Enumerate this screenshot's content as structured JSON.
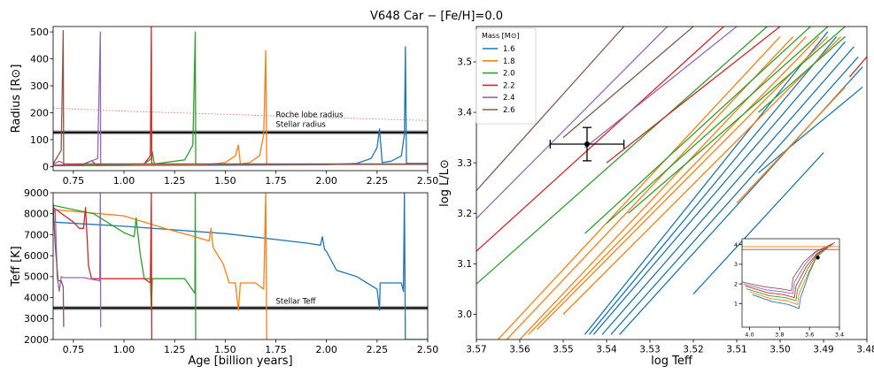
{
  "figure_title": "V648 Car − [Fe/H]=0.0",
  "chart_data": [
    {
      "id": "radius",
      "type": "line",
      "ylabel": "Radius [R⊙]",
      "xlim": [
        0.65,
        2.5
      ],
      "ylim": [
        -15,
        520
      ],
      "xticks": [
        0.75,
        1.0,
        1.25,
        1.5,
        1.75,
        2.0,
        2.25,
        2.5
      ],
      "xtick_labels": [
        "0.75",
        "1.00",
        "1.25",
        "1.50",
        "1.75",
        "2.00",
        "2.25",
        "2.50"
      ],
      "yticks": [
        0,
        100,
        200,
        300,
        400,
        500
      ],
      "ytick_labels": [
        "0",
        "100",
        "200",
        "300",
        "400",
        "500"
      ],
      "hlines": [
        {
          "name": "stellar-radius",
          "y": 127,
          "color": "#000000"
        }
      ],
      "annotations": [
        {
          "text": "Roche lobe radius",
          "x": 1.75,
          "y": 183,
          "color": "#f08080"
        },
        {
          "text": "Stellar radius",
          "x": 1.75,
          "y": 148,
          "color": "#555555"
        }
      ],
      "series": [
        {
          "name": "Roche lobe radius",
          "color": "#f08080",
          "style": "dotted",
          "x": [
            0.65,
            1.0,
            1.5,
            2.0,
            2.5
          ],
          "y": [
            217,
            206,
            194,
            182,
            171
          ]
        },
        {
          "name": "1.6",
          "color": "#1f77b4",
          "x": [
            0.65,
            1.0,
            1.5,
            2.0,
            2.15,
            2.22,
            2.25,
            2.262,
            2.275,
            2.32,
            2.37,
            2.385,
            2.39,
            2.395,
            2.5
          ],
          "y": [
            3,
            4,
            5,
            7,
            12,
            30,
            70,
            140,
            15,
            20,
            40,
            120,
            445,
            12,
            12
          ]
        },
        {
          "name": "1.8",
          "color": "#ff7f0e",
          "x": [
            0.65,
            1.0,
            1.4,
            1.5,
            1.55,
            1.565,
            1.575,
            1.62,
            1.67,
            1.69,
            1.7,
            1.705,
            1.72,
            2.5
          ],
          "y": [
            4,
            5,
            7,
            15,
            40,
            80,
            10,
            15,
            40,
            120,
            430,
            8,
            8,
            8
          ]
        },
        {
          "name": "2.0",
          "color": "#2ca02c",
          "x": [
            0.65,
            1.0,
            1.1,
            1.135,
            1.14,
            1.15,
            1.3,
            1.34,
            1.352,
            1.354,
            1.36,
            2.5
          ],
          "y": [
            4,
            6,
            10,
            30,
            55,
            10,
            25,
            80,
            500,
            10,
            8,
            8
          ]
        },
        {
          "name": "2.2",
          "color": "#d62728",
          "x": [
            0.65,
            0.8,
            0.84,
            0.86,
            1.1,
            1.13,
            1.135,
            1.137,
            1.15,
            2.5
          ],
          "y": [
            5,
            8,
            22,
            8,
            10,
            40,
            530,
            10,
            9,
            9
          ]
        },
        {
          "name": "2.4",
          "color": "#9467bd",
          "x": [
            0.65,
            0.68,
            0.71,
            0.8,
            0.87,
            0.883,
            0.885,
            0.89,
            2.5
          ],
          "y": [
            8,
            20,
            8,
            10,
            30,
            500,
            10,
            9,
            9
          ]
        },
        {
          "name": "2.6",
          "color": "#8c564b",
          "x": [
            0.65,
            0.69,
            0.7,
            0.702,
            0.71,
            2.5
          ],
          "y": [
            10,
            60,
            505,
            10,
            10,
            10
          ]
        }
      ]
    },
    {
      "id": "teff",
      "type": "line",
      "xlabel": "Age [billion years]",
      "ylabel": "Teff [K]",
      "xlim": [
        0.65,
        2.5
      ],
      "ylim": [
        2000,
        9000
      ],
      "xticks": [
        0.75,
        1.0,
        1.25,
        1.5,
        1.75,
        2.0,
        2.25,
        2.5
      ],
      "xtick_labels": [
        "0.75",
        "1.00",
        "1.25",
        "1.50",
        "1.75",
        "2.00",
        "2.25",
        "2.50"
      ],
      "yticks": [
        2000,
        3000,
        4000,
        5000,
        6000,
        7000,
        8000,
        9000
      ],
      "ytick_labels": [
        "2000",
        "3000",
        "4000",
        "5000",
        "6000",
        "7000",
        "8000",
        "9000"
      ],
      "hlines": [
        {
          "name": "stellar-teff",
          "y": 3500,
          "color": "#000000"
        }
      ],
      "annotations": [
        {
          "text": "Stellar Teff",
          "x": 1.75,
          "y": 3700,
          "color": "#555555"
        }
      ],
      "series": [
        {
          "name": "1.6",
          "color": "#1f77b4",
          "x": [
            0.65,
            1.0,
            1.5,
            1.9,
            1.97,
            1.98,
            1.99,
            2.0,
            2.05,
            2.15,
            2.25,
            2.262,
            2.265,
            2.3,
            2.37,
            2.38,
            2.385,
            2.39,
            2.5
          ],
          "y": [
            7600,
            7400,
            7050,
            6600,
            6500,
            6900,
            6300,
            6200,
            5300,
            5000,
            4400,
            3400,
            4700,
            4700,
            4700,
            4300,
            9000,
            2000,
            2000
          ]
        },
        {
          "name": "1.8",
          "color": "#ff7f0e",
          "x": [
            0.65,
            1.0,
            1.2,
            1.35,
            1.42,
            1.43,
            1.44,
            1.49,
            1.52,
            1.55,
            1.565,
            1.575,
            1.65,
            1.69,
            1.7,
            1.705,
            1.706
          ],
          "y": [
            8200,
            7900,
            7300,
            6900,
            6700,
            7300,
            6400,
            5600,
            4700,
            4700,
            3400,
            4700,
            4700,
            4400,
            9000,
            2000,
            2000
          ]
        },
        {
          "name": "2.0",
          "color": "#2ca02c",
          "x": [
            0.65,
            0.85,
            1.0,
            1.05,
            1.06,
            1.08,
            1.1,
            1.13,
            1.135,
            1.14,
            1.145,
            1.3,
            1.35,
            1.352,
            1.354
          ],
          "y": [
            8400,
            8000,
            7100,
            6900,
            7800,
            6100,
            4900,
            4900,
            3400,
            4900,
            4900,
            4900,
            4200,
            9000,
            2000
          ]
        },
        {
          "name": "2.2",
          "color": "#d62728",
          "x": [
            0.65,
            0.75,
            0.78,
            0.8,
            0.81,
            0.825,
            0.84,
            0.85,
            1.1,
            1.13,
            1.135,
            1.137,
            1.138
          ],
          "y": [
            8300,
            7600,
            7300,
            7300,
            8300,
            5500,
            4900,
            4900,
            4900,
            4700,
            9000,
            2000,
            2000
          ]
        },
        {
          "name": "2.4",
          "color": "#9467bd",
          "x": [
            0.65,
            0.66,
            0.67,
            0.68,
            0.69,
            0.7,
            0.8,
            0.88,
            0.883,
            0.885,
            0.886
          ],
          "y": [
            8000,
            8200,
            5000,
            4300,
            5000,
            4950,
            4950,
            4800,
            9000,
            2600,
            2600
          ]
        },
        {
          "name": "2.6",
          "color": "#8c564b",
          "x": [
            0.65,
            0.66,
            0.675,
            0.69,
            0.7,
            0.702
          ],
          "y": [
            8500,
            6500,
            4800,
            4800,
            4500,
            2600
          ]
        }
      ]
    },
    {
      "id": "hrd",
      "type": "line",
      "xlabel": "log Teff",
      "ylabel": "log L/L⊙",
      "xlim": [
        3.57,
        3.48
      ],
      "ylim": [
        2.95,
        3.57
      ],
      "xticks": [
        3.57,
        3.56,
        3.55,
        3.54,
        3.53,
        3.52,
        3.51,
        3.5,
        3.49,
        3.48
      ],
      "xtick_labels": [
        "3.57",
        "3.56",
        "3.55",
        "3.54",
        "3.53",
        "3.52",
        "3.51",
        "3.50",
        "3.49",
        "3.48"
      ],
      "yticks": [
        3.0,
        3.1,
        3.2,
        3.3,
        3.4,
        3.5
      ],
      "ytick_labels": [
        "3.0",
        "3.1",
        "3.2",
        "3.3",
        "3.4",
        "3.5"
      ],
      "legend_title": "Mass [M⊙]",
      "legend_position": "top-left",
      "point": {
        "x": 3.5445,
        "y": 3.337,
        "xerr": 0.0085,
        "yerr": 0.033
      },
      "series": [
        {
          "name": "1.6",
          "color": "#1f77b4",
          "lines": [
            {
              "x": [
                3.545,
                3.489
              ],
              "y": [
                2.96,
                3.56
              ]
            },
            {
              "x": [
                3.544,
                3.487
              ],
              "y": [
                2.96,
                3.55
              ]
            },
            {
              "x": [
                3.543,
                3.485
              ],
              "y": [
                2.96,
                3.54
              ]
            },
            {
              "x": [
                3.541,
                3.483
              ],
              "y": [
                2.96,
                3.53
              ]
            },
            {
              "x": [
                3.539,
                3.482
              ],
              "y": [
                2.96,
                3.51
              ]
            },
            {
              "x": [
                3.537,
                3.481
              ],
              "y": [
                2.96,
                3.49
              ]
            },
            {
              "x": [
                3.52,
                3.49
              ],
              "y": [
                3.04,
                3.32
              ]
            },
            {
              "x": [
                3.505,
                3.481
              ],
              "y": [
                3.28,
                3.45
              ]
            }
          ]
        },
        {
          "name": "1.8",
          "color": "#ff7f0e",
          "lines": [
            {
              "x": [
                3.565,
                3.5
              ],
              "y": [
                2.95,
                3.55
              ]
            },
            {
              "x": [
                3.563,
                3.497
              ],
              "y": [
                2.95,
                3.55
              ]
            },
            {
              "x": [
                3.56,
                3.494
              ],
              "y": [
                2.95,
                3.55
              ]
            },
            {
              "x": [
                3.558,
                3.491
              ],
              "y": [
                2.96,
                3.55
              ]
            },
            {
              "x": [
                3.556,
                3.489
              ],
              "y": [
                2.97,
                3.55
              ]
            },
            {
              "x": [
                3.55,
                3.486
              ],
              "y": [
                3.0,
                3.55
              ]
            },
            {
              "x": [
                3.51,
                3.485
              ],
              "y": [
                3.22,
                3.45
              ]
            }
          ]
        },
        {
          "name": "2.0",
          "color": "#2ca02c",
          "lines": [
            {
              "x": [
                3.57,
                3.503
              ],
              "y": [
                3.06,
                3.57
              ]
            },
            {
              "x": [
                3.545,
                3.493
              ],
              "y": [
                3.16,
                3.57
              ]
            },
            {
              "x": [
                3.54,
                3.489
              ],
              "y": [
                3.18,
                3.57
              ]
            },
            {
              "x": [
                3.535,
                3.485
              ],
              "y": [
                3.2,
                3.57
              ]
            },
            {
              "x": [
                3.505,
                3.485
              ],
              "y": [
                3.4,
                3.55
              ]
            }
          ]
        },
        {
          "name": "2.2",
          "color": "#d62728",
          "lines": [
            {
              "x": [
                3.57,
                3.513
              ],
              "y": [
                3.125,
                3.57
              ]
            },
            {
              "x": [
                3.54,
                3.5
              ],
              "y": [
                3.3,
                3.57
              ]
            },
            {
              "x": [
                3.484,
                3.48
              ],
              "y": [
                3.47,
                3.51
              ]
            }
          ]
        },
        {
          "name": "2.4",
          "color": "#9467bd",
          "lines": [
            {
              "x": [
                3.57,
                3.526
              ],
              "y": [
                3.19,
                3.57
              ]
            },
            {
              "x": [
                3.545,
                3.51
              ],
              "y": [
                3.33,
                3.57
              ]
            }
          ]
        },
        {
          "name": "2.6",
          "color": "#8c564b",
          "lines": [
            {
              "x": [
                3.57,
                3.536
              ],
              "y": [
                3.245,
                3.57
              ]
            },
            {
              "x": [
                3.55,
                3.52
              ],
              "y": [
                3.35,
                3.57
              ]
            }
          ]
        }
      ]
    },
    {
      "id": "hrd-inset",
      "type": "line",
      "xlim": [
        4.05,
        3.4
      ],
      "ylim": [
        -0.2,
        4.3
      ],
      "xticks": [
        4.0,
        3.8,
        3.6,
        3.4
      ],
      "xtick_labels": [
        "4.0",
        "3.8",
        "3.6",
        "3.4"
      ],
      "yticks": [
        1,
        2,
        3,
        4
      ],
      "ytick_labels": [
        "1",
        "2",
        "3",
        "4"
      ],
      "point": {
        "x": 3.5445,
        "y": 3.34
      },
      "series": [
        {
          "name": "1.6",
          "color": "#1f77b4",
          "x": [
            3.98,
            3.85,
            3.74,
            3.67,
            3.66,
            3.6,
            3.55,
            3.46
          ],
          "y": [
            1.45,
            1.1,
            0.95,
            0.75,
            1.3,
            2.6,
            3.4,
            3.95
          ]
        },
        {
          "name": "1.8",
          "color": "#ff7f0e",
          "x": [
            4.0,
            3.86,
            3.75,
            3.68,
            3.67,
            3.6,
            3.55,
            3.45
          ],
          "y": [
            1.6,
            1.25,
            1.15,
            0.95,
            1.5,
            2.7,
            3.45,
            4.0
          ]
        },
        {
          "name": "2.0",
          "color": "#2ca02c",
          "x": [
            4.02,
            3.87,
            3.76,
            3.69,
            3.68,
            3.61,
            3.55,
            3.45
          ],
          "y": [
            1.75,
            1.4,
            1.3,
            1.15,
            1.7,
            2.8,
            3.5,
            4.0
          ]
        },
        {
          "name": "2.2",
          "color": "#d62728",
          "x": [
            4.03,
            3.88,
            3.77,
            3.7,
            3.69,
            3.62,
            3.55,
            3.44
          ],
          "y": [
            1.9,
            1.55,
            1.45,
            1.3,
            1.9,
            2.9,
            3.55,
            4.05
          ]
        },
        {
          "name": "2.4",
          "color": "#9467bd",
          "x": [
            4.04,
            3.89,
            3.78,
            3.71,
            3.7,
            3.63,
            3.56,
            3.44
          ],
          "y": [
            2.0,
            1.7,
            1.6,
            1.5,
            2.1,
            3.0,
            3.6,
            4.05
          ]
        },
        {
          "name": "2.6",
          "color": "#8c564b",
          "x": [
            4.05,
            3.9,
            3.79,
            3.72,
            3.71,
            3.64,
            3.56,
            3.43
          ],
          "y": [
            2.1,
            1.85,
            1.75,
            1.65,
            2.3,
            3.1,
            3.65,
            4.1
          ]
        },
        {
          "name": "1.8-hline",
          "color": "#ff7f0e",
          "x": [
            4.05,
            3.4
          ],
          "y": [
            3.9,
            3.9
          ]
        },
        {
          "name": "2.6-hline",
          "color": "#8c564b",
          "x": [
            4.05,
            3.4
          ],
          "y": [
            3.75,
            3.75
          ]
        }
      ]
    }
  ]
}
